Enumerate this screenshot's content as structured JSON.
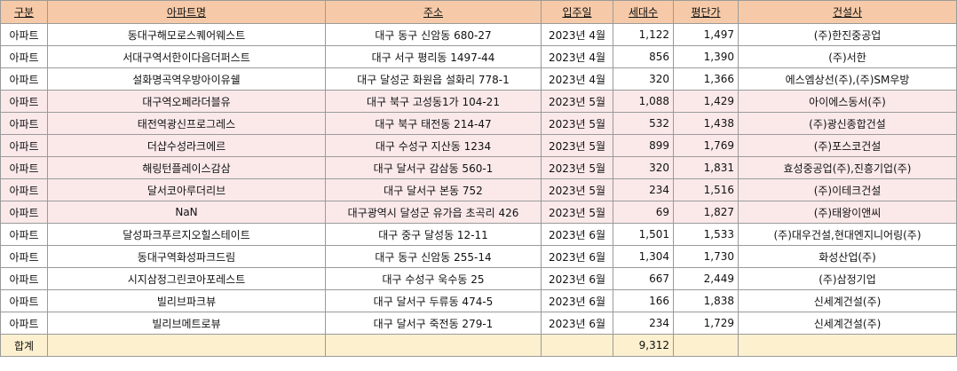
{
  "columns": [
    "구분",
    "아파트명",
    "주소",
    "입주일",
    "세대수",
    "평단가",
    "건설사"
  ],
  "rows": [
    {
      "type": "아파트",
      "name": "동대구해모로스퀘어웨스트",
      "address": "대구 동구 신암동 680-27",
      "date": "2023년 4월",
      "units": "1,122",
      "price": "1,497",
      "builder": "(주)한진중공업",
      "highlight": false
    },
    {
      "type": "아파트",
      "name": "서대구역서한이다음더퍼스트",
      "address": "대구 서구 평리동 1497-44",
      "date": "2023년 4월",
      "units": "856",
      "price": "1,390",
      "builder": "(주)서한",
      "highlight": false
    },
    {
      "type": "아파트",
      "name": "설화명곡역우방아이유쉘",
      "address": "대구 달성군 화원읍 설화리 778-1",
      "date": "2023년 4월",
      "units": "320",
      "price": "1,366",
      "builder": "에스엠상선(주),(주)SM우방",
      "highlight": false
    },
    {
      "type": "아파트",
      "name": "대구역오페라더블유",
      "address": "대구 북구 고성동1가 104-21",
      "date": "2023년 5월",
      "units": "1,088",
      "price": "1,429",
      "builder": "아이에스동서(주)",
      "highlight": true
    },
    {
      "type": "아파트",
      "name": "태전역광신프로그레스",
      "address": "대구 북구 태전동 214-47",
      "date": "2023년 5월",
      "units": "532",
      "price": "1,438",
      "builder": "(주)광신종합건설",
      "highlight": true
    },
    {
      "type": "아파트",
      "name": "더샵수성라크에르",
      "address": "대구 수성구 지산동 1234",
      "date": "2023년 5월",
      "units": "899",
      "price": "1,769",
      "builder": "(주)포스코건설",
      "highlight": true
    },
    {
      "type": "아파트",
      "name": "해링턴플레이스감삼",
      "address": "대구 달서구 감삼동 560-1",
      "date": "2023년 5월",
      "units": "320",
      "price": "1,831",
      "builder": "효성중공업(주),진흥기업(주)",
      "highlight": true
    },
    {
      "type": "아파트",
      "name": "달서코아루더리브",
      "address": "대구 달서구 본동 752",
      "date": "2023년 5월",
      "units": "234",
      "price": "1,516",
      "builder": "(주)이테크건설",
      "highlight": true
    },
    {
      "type": "아파트",
      "name": "NaN",
      "address": "대구광역시 달성군 유가읍 초곡리 426",
      "date": "2023년 5월",
      "units": "69",
      "price": "1,827",
      "builder": "(주)태왕이앤씨",
      "highlight": true
    },
    {
      "type": "아파트",
      "name": "달성파크푸르지오힐스테이트",
      "address": "대구 중구 달성동 12-11",
      "date": "2023년 6월",
      "units": "1,501",
      "price": "1,533",
      "builder": "(주)대우건설,현대엔지니어링(주)",
      "highlight": false
    },
    {
      "type": "아파트",
      "name": "동대구역화성파크드림",
      "address": "대구 동구 신암동 255-14",
      "date": "2023년 6월",
      "units": "1,304",
      "price": "1,730",
      "builder": "화성산업(주)",
      "highlight": false
    },
    {
      "type": "아파트",
      "name": "시지삼정그린코아포레스트",
      "address": "대구 수성구 욱수동 25",
      "date": "2023년 6월",
      "units": "667",
      "price": "2,449",
      "builder": "(주)삼정기업",
      "highlight": false
    },
    {
      "type": "아파트",
      "name": "빌리브파크뷰",
      "address": "대구 달서구 두류동 474-5",
      "date": "2023년 6월",
      "units": "166",
      "price": "1,838",
      "builder": "신세계건설(주)",
      "highlight": false
    },
    {
      "type": "아파트",
      "name": "빌리브메트로뷰",
      "address": "대구 달서구 죽전동 279-1",
      "date": "2023년 6월",
      "units": "234",
      "price": "1,729",
      "builder": "신세계건설(주)",
      "highlight": false
    }
  ],
  "total": {
    "label": "합계",
    "units": "9,312"
  }
}
